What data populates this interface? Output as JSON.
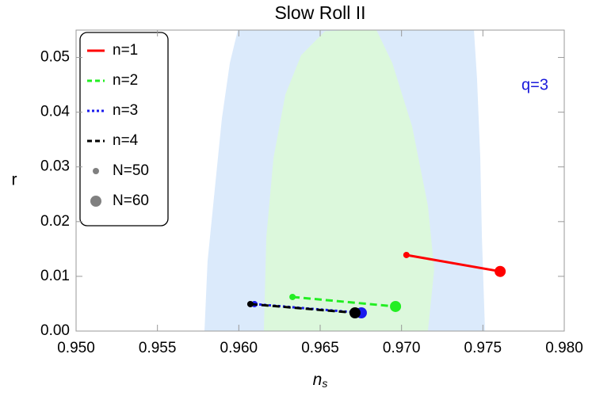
{
  "chart_data": {
    "type": "line",
    "title": "Slow Roll II",
    "xlabel": "n",
    "xlabel_sub": "s",
    "ylabel": "r",
    "annotation": "q=3",
    "annotation_color": "#1a1adb",
    "xlim": [
      0.95,
      0.98
    ],
    "ylim": [
      0,
      0.055
    ],
    "xticks": [
      {
        "value": 0.95,
        "label": "0.950"
      },
      {
        "value": 0.955,
        "label": "0.955"
      },
      {
        "value": 0.96,
        "label": "0.960"
      },
      {
        "value": 0.965,
        "label": "0.965"
      },
      {
        "value": 0.97,
        "label": "0.970"
      },
      {
        "value": 0.975,
        "label": "0.975"
      },
      {
        "value": 0.98,
        "label": "0.980"
      }
    ],
    "yticks": [
      {
        "value": 0,
        "label": "0.00"
      },
      {
        "value": 0.01,
        "label": "0.01"
      },
      {
        "value": 0.02,
        "label": "0.02"
      },
      {
        "value": 0.03,
        "label": "0.03"
      },
      {
        "value": 0.04,
        "label": "0.04"
      },
      {
        "value": 0.05,
        "label": "0.05"
      }
    ],
    "contours": [
      {
        "color": "#dbeafb",
        "x": [
          0.95789,
          0.95808,
          0.95847,
          0.95896,
          0.95945,
          0.95994,
          0.97445,
          0.97464,
          0.97484,
          0.97494,
          0.97513
        ],
        "values": [
          0,
          0.01275,
          0.02435,
          0.03884,
          0.04899,
          0.055,
          0.055,
          0.04609,
          0.03159,
          0.0171,
          0
        ]
      },
      {
        "color": "#dcf8dc",
        "x": [
          0.96154,
          0.96169,
          0.96213,
          0.96286,
          0.96383,
          0.96529,
          0.967,
          0.96846,
          0.96943,
          0.97065,
          0.97162,
          0.97201,
          0.97162
        ],
        "values": [
          0,
          0.0171,
          0.0316,
          0.0432,
          0.0504,
          0.0548,
          0.055,
          0.055,
          0.049,
          0.0374,
          0.0229,
          0.0113,
          0
        ]
      }
    ],
    "point_labels": [
      "N=50",
      "N=60"
    ],
    "point_color": "#808080",
    "series": [
      {
        "name": "n=1",
        "color": "#ff0000",
        "dash": "solid",
        "x": [
          0.9703,
          0.97606
        ],
        "values": [
          0.0139,
          0.0109
        ]
      },
      {
        "name": "n=2",
        "color": "#22ee22",
        "dash": "dashed",
        "x": [
          0.9633,
          0.96963
        ],
        "values": [
          0.00623,
          0.00449
        ]
      },
      {
        "name": "n=3",
        "color": "#1a1aee",
        "dash": "dotted",
        "x": [
          0.96096,
          0.96753
        ],
        "values": [
          0.00493,
          0.00333
        ]
      },
      {
        "name": "n=4",
        "color": "#000000",
        "dash": "dashed",
        "x": [
          0.96071,
          0.96714
        ],
        "values": [
          0.00493,
          0.00333
        ]
      }
    ]
  }
}
